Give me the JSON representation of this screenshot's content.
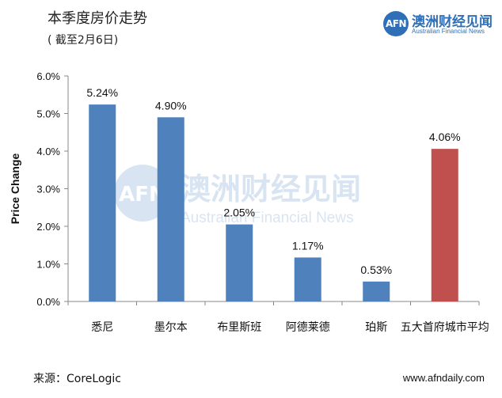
{
  "header": {
    "title": "本季度房价走势",
    "subtitle": "( 截至2月6日)"
  },
  "logo": {
    "mark": "AFN",
    "name_cn": "澳洲财经见闻",
    "name_en": "Australian Financial News"
  },
  "watermark": {
    "mark": "AFN",
    "name_cn": "澳洲财经见闻",
    "name_en": "Australian Financial News"
  },
  "footer": {
    "source": "来源：CoreLogic",
    "website": "www.afndaily.com"
  },
  "chart_data": {
    "type": "bar",
    "title": "",
    "xlabel": "",
    "ylabel": "Price Change",
    "categories": [
      "悉尼",
      "墨尔本",
      "布里斯班",
      "阿德莱德",
      "珀斯",
      "五大首府城市平均"
    ],
    "values": [
      5.24,
      4.9,
      2.05,
      1.17,
      0.53,
      4.06
    ],
    "data_labels": [
      "5.24%",
      "4.90%",
      "2.05%",
      "1.17%",
      "0.53%",
      "4.06%"
    ],
    "bar_colors": [
      "#4f81bd",
      "#4f81bd",
      "#4f81bd",
      "#4f81bd",
      "#4f81bd",
      "#c0504d"
    ],
    "ylim": [
      0,
      6
    ],
    "yticks": [
      "0.0%",
      "1.0%",
      "2.0%",
      "3.0%",
      "4.0%",
      "5.0%",
      "6.0%"
    ],
    "grid": false,
    "legend": "none"
  }
}
